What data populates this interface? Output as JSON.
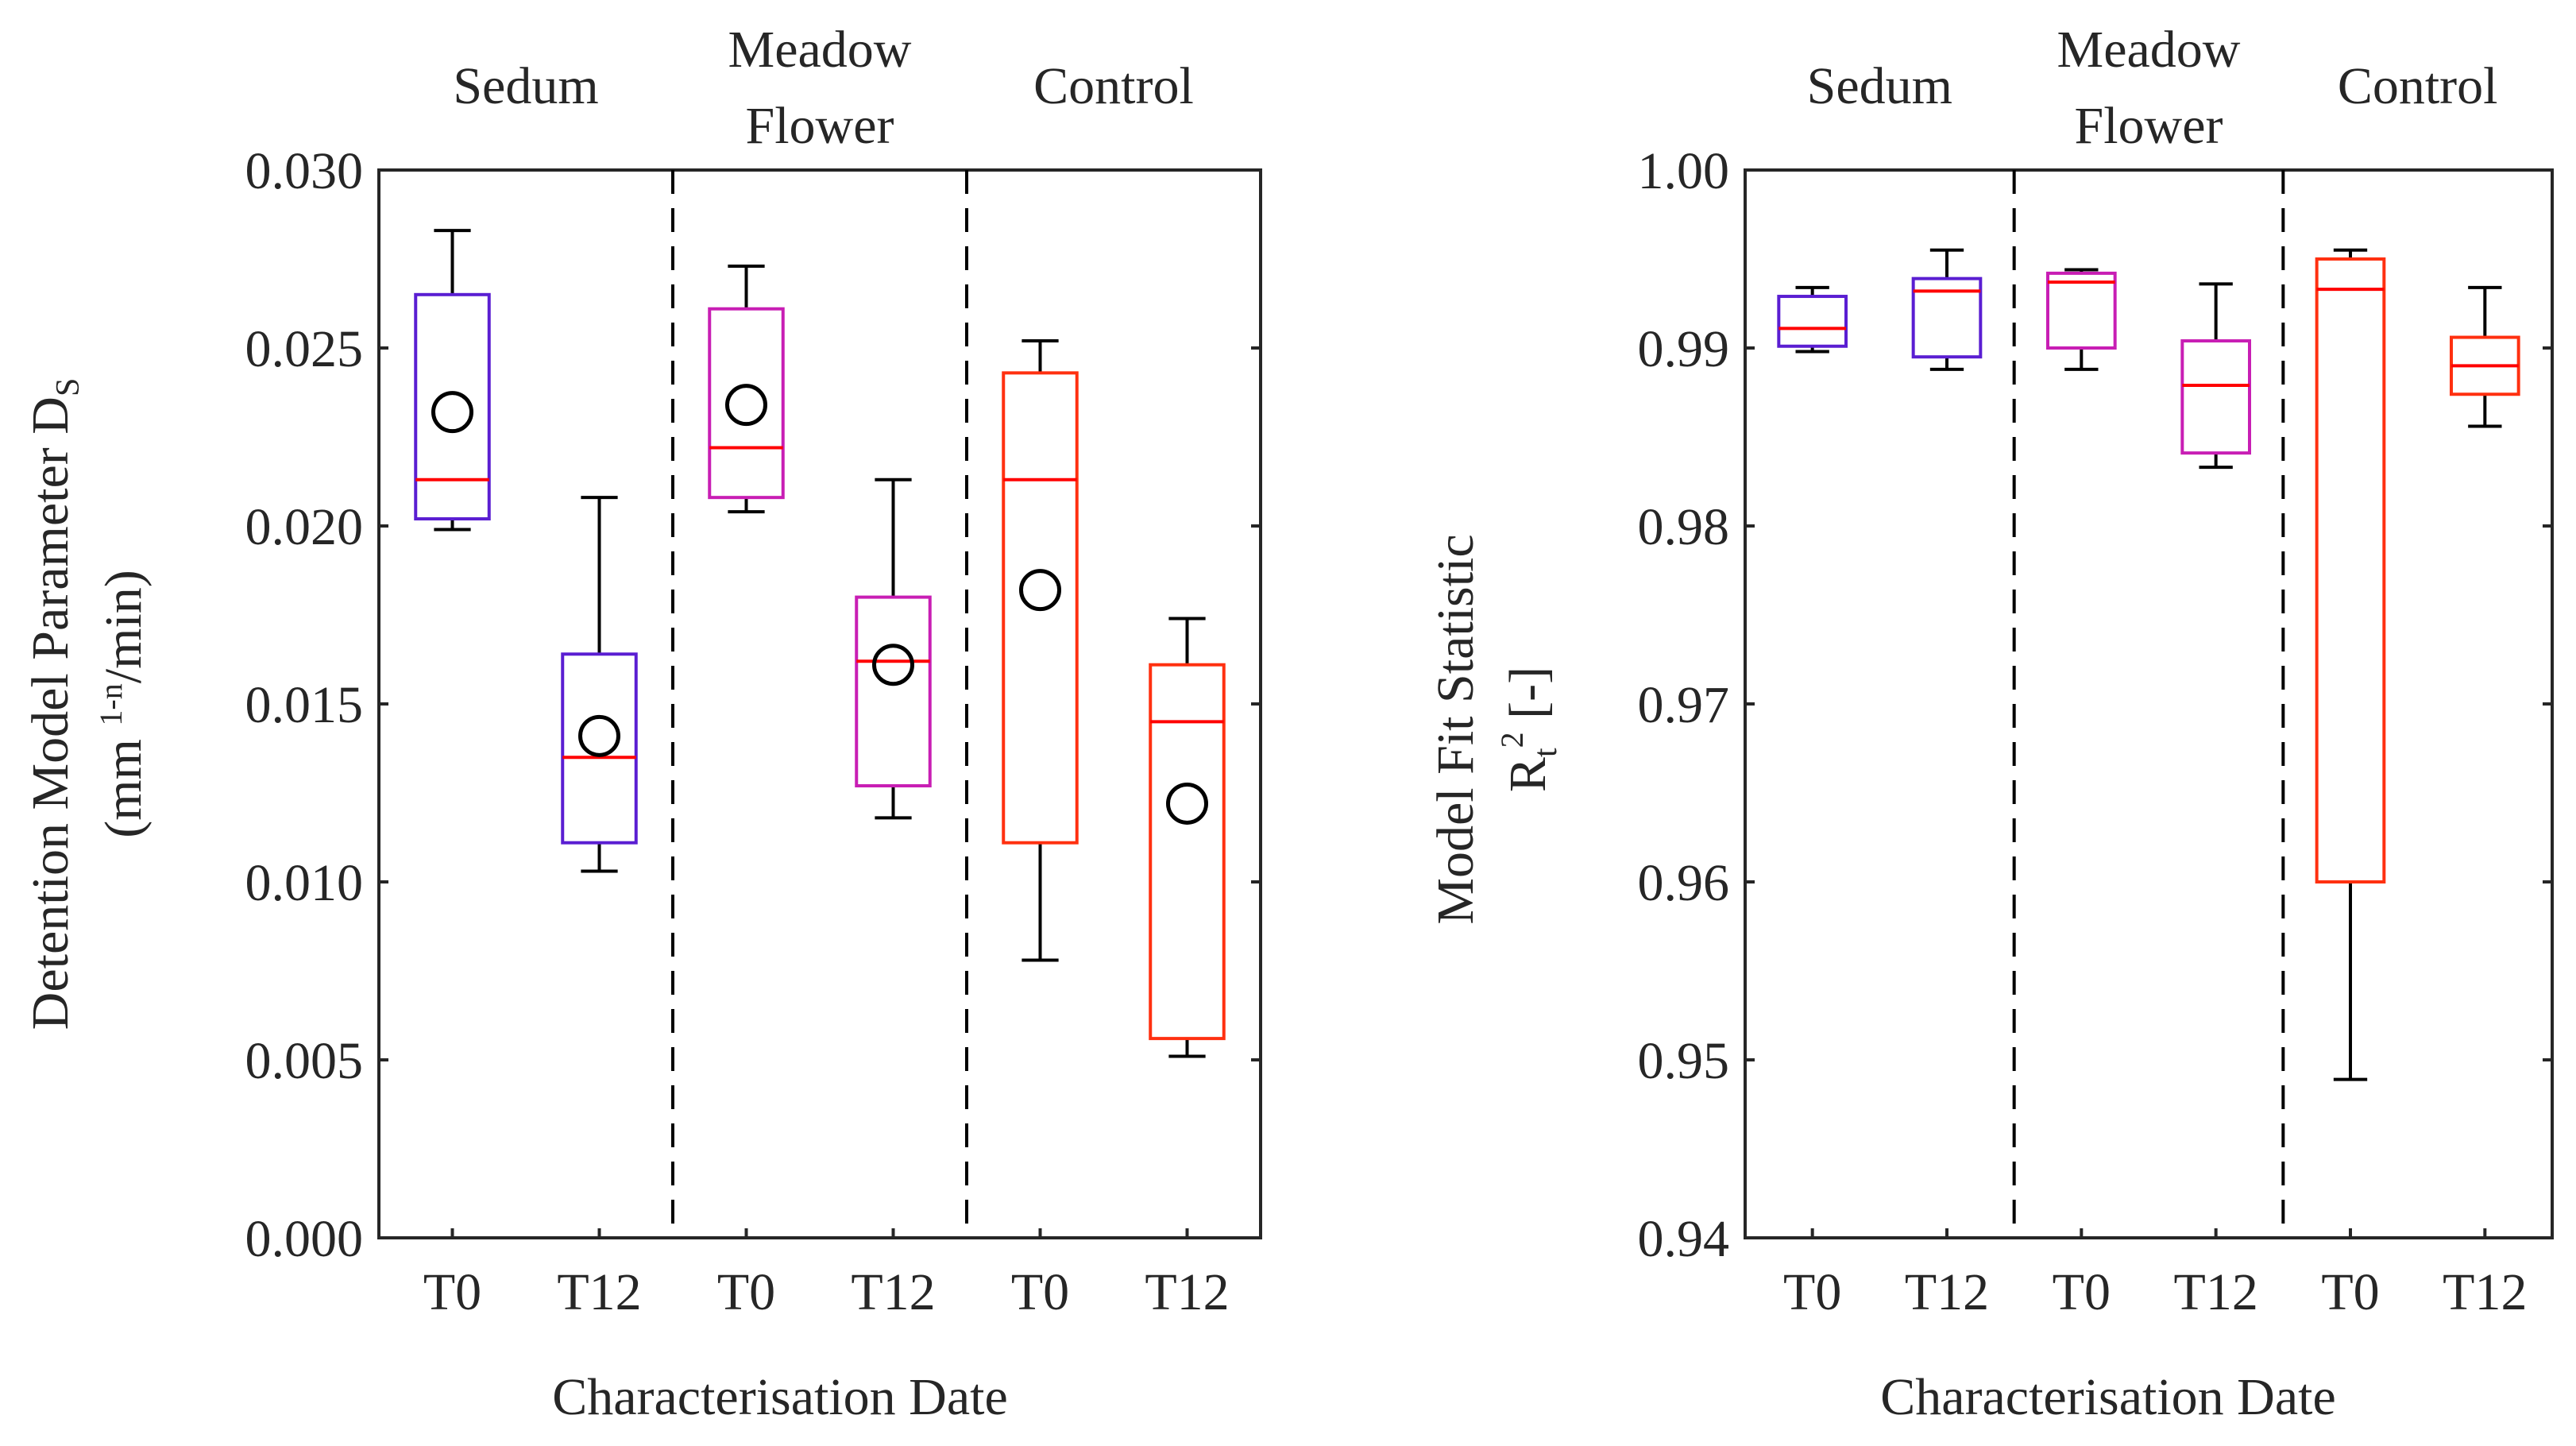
{
  "chart_data": [
    {
      "type": "boxplot",
      "ylabel": "Detention Model Parameter  D",
      "ylabel_sub": "S",
      "ylabel_units_prefix": "(mm ",
      "ylabel_units_sup": "1-n",
      "ylabel_units_suffix": "/min)",
      "xlabel": "Characterisation Date",
      "ylim": [
        0.0,
        0.03
      ],
      "yticks": [
        "0.000",
        "0.005",
        "0.010",
        "0.015",
        "0.020",
        "0.025",
        "0.030"
      ],
      "categories": [
        "T0",
        "T12",
        "T0",
        "T12",
        "T0",
        "T12"
      ],
      "groups": [
        "Sedum",
        "Meadow\nFlower",
        "Control"
      ],
      "boxes": [
        {
          "group": "Sedum",
          "date": "T0",
          "min": 0.0199,
          "q1": 0.0202,
          "median": 0.0213,
          "q3": 0.0265,
          "max": 0.0283,
          "mean": 0.0232,
          "color": "#5a1ed2"
        },
        {
          "group": "Sedum",
          "date": "T12",
          "min": 0.0103,
          "q1": 0.0111,
          "median": 0.0135,
          "q3": 0.0164,
          "max": 0.0208,
          "mean": 0.0141,
          "color": "#5a1ed2"
        },
        {
          "group": "Meadow Flower",
          "date": "T0",
          "min": 0.0204,
          "q1": 0.0208,
          "median": 0.0222,
          "q3": 0.0261,
          "max": 0.0273,
          "mean": 0.0234,
          "color": "#c81eb4"
        },
        {
          "group": "Meadow Flower",
          "date": "T12",
          "min": 0.0118,
          "q1": 0.0127,
          "median": 0.0162,
          "q3": 0.018,
          "max": 0.0213,
          "mean": 0.0161,
          "color": "#c81eb4"
        },
        {
          "group": "Control",
          "date": "T0",
          "min": 0.0078,
          "q1": 0.0111,
          "median": 0.0213,
          "q3": 0.0243,
          "max": 0.0252,
          "mean": 0.0182,
          "color": "#ff3010"
        },
        {
          "group": "Control",
          "date": "T12",
          "min": 0.0051,
          "q1": 0.0056,
          "median": 0.0145,
          "q3": 0.0161,
          "max": 0.0174,
          "mean": 0.0122,
          "color": "#ff3010"
        }
      ]
    },
    {
      "type": "boxplot",
      "ylabel": "Model Fit Statistic",
      "ylabel2_main": "R",
      "ylabel2_sub": "t",
      "ylabel2_sup": "2",
      "ylabel2_suffix": " [-]",
      "xlabel": "Characterisation Date",
      "ylim": [
        0.94,
        1.0
      ],
      "yticks": [
        "0.94",
        "0.95",
        "0.96",
        "0.97",
        "0.98",
        "0.99",
        "1.00"
      ],
      "categories": [
        "T0",
        "T12",
        "T0",
        "T12",
        "T0",
        "T12"
      ],
      "groups": [
        "Sedum",
        "Meadow\nFlower",
        "Control"
      ],
      "boxes": [
        {
          "group": "Sedum",
          "date": "T0",
          "min": 0.9898,
          "q1": 0.9901,
          "median": 0.9911,
          "q3": 0.9929,
          "max": 0.9934,
          "color": "#5a1ed2"
        },
        {
          "group": "Sedum",
          "date": "T12",
          "min": 0.9888,
          "q1": 0.9895,
          "median": 0.9932,
          "q3": 0.9939,
          "max": 0.9955,
          "color": "#5a1ed2"
        },
        {
          "group": "Meadow Flower",
          "date": "T0",
          "min": 0.9888,
          "q1": 0.99,
          "median": 0.9937,
          "q3": 0.9942,
          "max": 0.9944,
          "color": "#c81eb4"
        },
        {
          "group": "Meadow Flower",
          "date": "T12",
          "min": 0.9833,
          "q1": 0.9841,
          "median": 0.9879,
          "q3": 0.9904,
          "max": 0.9936,
          "color": "#c81eb4"
        },
        {
          "group": "Control",
          "date": "T0",
          "min": 0.9489,
          "q1": 0.96,
          "median": 0.9933,
          "q3": 0.995,
          "max": 0.9955,
          "color": "#ff3010"
        },
        {
          "group": "Control",
          "date": "T12",
          "min": 0.9856,
          "q1": 0.9874,
          "median": 0.989,
          "q3": 0.9906,
          "max": 0.9934,
          "color": "#ff3010"
        }
      ]
    }
  ]
}
